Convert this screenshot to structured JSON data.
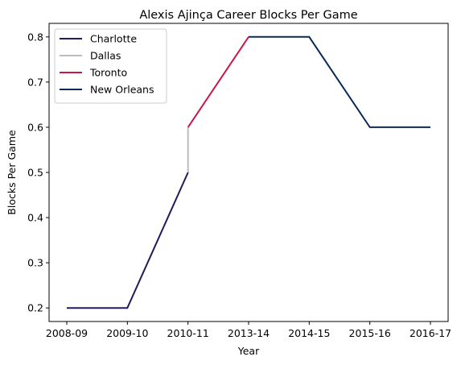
{
  "chart_data": {
    "type": "line",
    "title": "Alexis Ajinça Career Blocks Per Game",
    "xlabel": "Year",
    "ylabel": "Blocks Per Game",
    "categories": [
      "2008-09",
      "2009-10",
      "2010-11",
      "2013-14",
      "2014-15",
      "2015-16",
      "2016-17"
    ],
    "yticks": [
      "0.2",
      "0.3",
      "0.4",
      "0.5",
      "0.6",
      "0.7",
      "0.8"
    ],
    "ylim": [
      0.17,
      0.83
    ],
    "grid": false,
    "legend_position": "top-left",
    "series": [
      {
        "name": "Charlotte",
        "color": "#231a5c",
        "points": [
          [
            "2008-09",
            0.2
          ],
          [
            "2009-10",
            0.2
          ],
          [
            "2010-11",
            0.5
          ]
        ]
      },
      {
        "name": "Dallas",
        "color": "#bcbcbc",
        "points": [
          [
            "2010-11",
            0.5
          ],
          [
            "2010-11",
            0.6
          ]
        ]
      },
      {
        "name": "Toronto",
        "color": "#c8174b",
        "points": [
          [
            "2010-11",
            0.6
          ],
          [
            "2013-14",
            0.8
          ]
        ]
      },
      {
        "name": "New Orleans",
        "color": "#0d2a57",
        "points": [
          [
            "2013-14",
            0.8
          ],
          [
            "2014-15",
            0.8
          ],
          [
            "2015-16",
            0.6
          ],
          [
            "2016-17",
            0.6
          ]
        ]
      }
    ]
  }
}
